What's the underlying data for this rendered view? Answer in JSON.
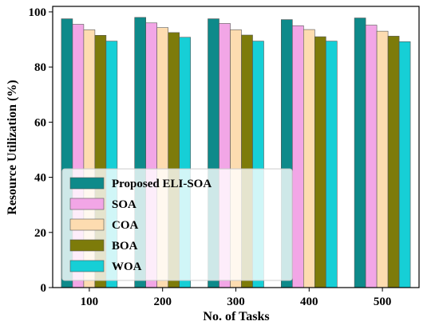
{
  "chart_data": {
    "type": "bar",
    "title": "",
    "xlabel": "No. of Tasks",
    "ylabel": "Resource Utilization (%)",
    "categories": [
      "100",
      "200",
      "300",
      "400",
      "500"
    ],
    "ylim": [
      0,
      102
    ],
    "yticks": [
      0,
      20,
      40,
      60,
      80,
      100
    ],
    "grid": false,
    "legend_position": "lower-left",
    "series": [
      {
        "name": "Proposed ELI-SOA",
        "color": "#0e8a8a",
        "values": [
          97.5,
          98.0,
          97.5,
          97.2,
          97.8
        ]
      },
      {
        "name": "SOA",
        "color": "#f2a6e6",
        "values": [
          95.5,
          96.0,
          95.8,
          95.0,
          95.2
        ]
      },
      {
        "name": "COA",
        "color": "#fddcb0",
        "values": [
          93.5,
          94.3,
          93.5,
          93.6,
          93.0
        ]
      },
      {
        "name": "BOA",
        "color": "#7d7b0a",
        "values": [
          91.5,
          92.5,
          91.6,
          91.0,
          91.2
        ]
      },
      {
        "name": "WOA",
        "color": "#16cfd6",
        "values": [
          89.4,
          90.8,
          89.4,
          89.4,
          89.2
        ]
      }
    ]
  }
}
